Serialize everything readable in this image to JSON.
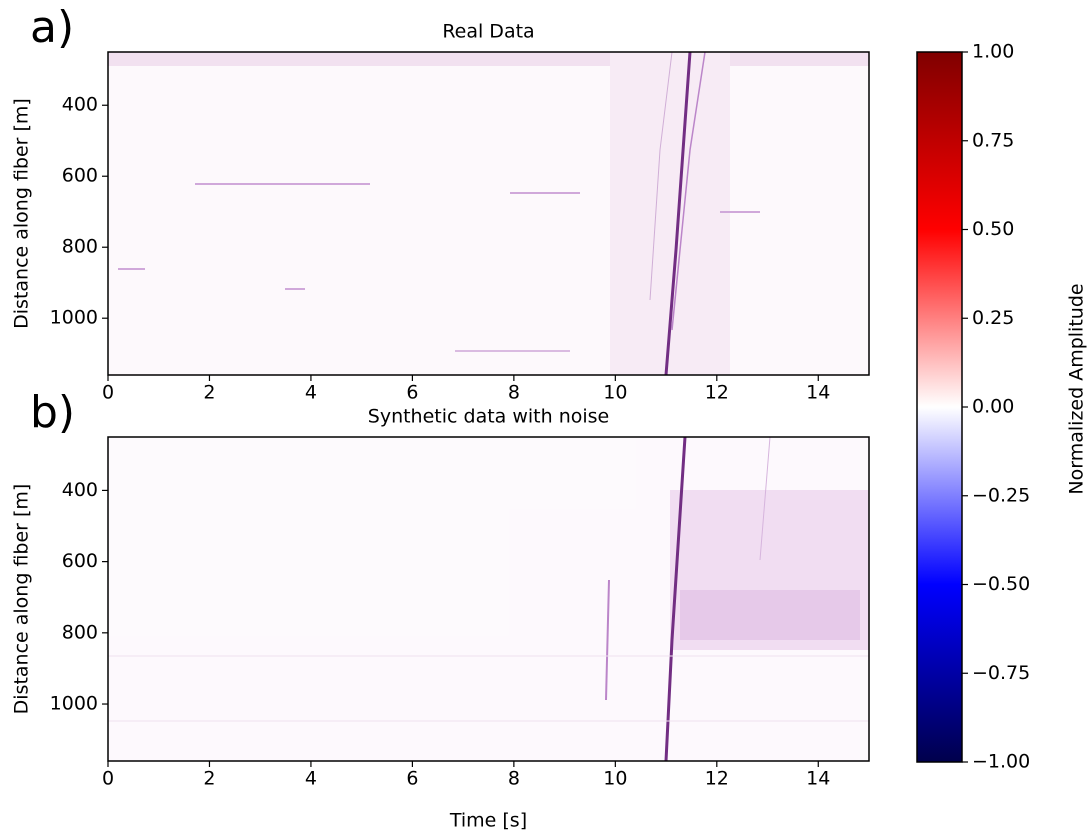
{
  "chart_data": [
    {
      "type": "heatmap",
      "panel_label": "a)",
      "title": "Real Data",
      "ylabel": "Distance along fiber [m]",
      "xlim": [
        0,
        15
      ],
      "xticks": [
        0,
        2,
        4,
        6,
        8,
        10,
        12,
        14
      ],
      "ylim": [
        250,
        1160
      ],
      "y_inverted": true,
      "yticks": [
        400,
        600,
        800,
        1000
      ]
    },
    {
      "type": "heatmap",
      "panel_label": "b)",
      "title": "Synthetic data with noise",
      "xlabel": "Time [s]",
      "ylabel": "Distance along fiber [m]",
      "xlim": [
        0,
        15
      ],
      "xticks": [
        0,
        2,
        4,
        6,
        8,
        10,
        12,
        14
      ],
      "ylim": [
        250,
        1160
      ],
      "y_inverted": true,
      "yticks": [
        400,
        600,
        800,
        1000
      ]
    }
  ],
  "colorbar": {
    "label": "Normalized Amplitude",
    "lim": [
      -1,
      1
    ],
    "colors": [
      "#00004c",
      "#0000ff",
      "#ffffff",
      "#ff0000",
      "#800000"
    ],
    "ticks": [
      {
        "value": -1,
        "label": "−1.00"
      },
      {
        "value": -0.75,
        "label": "−0.75"
      },
      {
        "value": -0.5,
        "label": "−0.50"
      },
      {
        "value": -0.25,
        "label": "−0.25"
      },
      {
        "value": 0,
        "label": "0.00"
      },
      {
        "value": 0.25,
        "label": "0.25"
      },
      {
        "value": 0.5,
        "label": "0.50"
      },
      {
        "value": 0.75,
        "label": "0.75"
      },
      {
        "value": 1,
        "label": "1.00"
      }
    ]
  }
}
